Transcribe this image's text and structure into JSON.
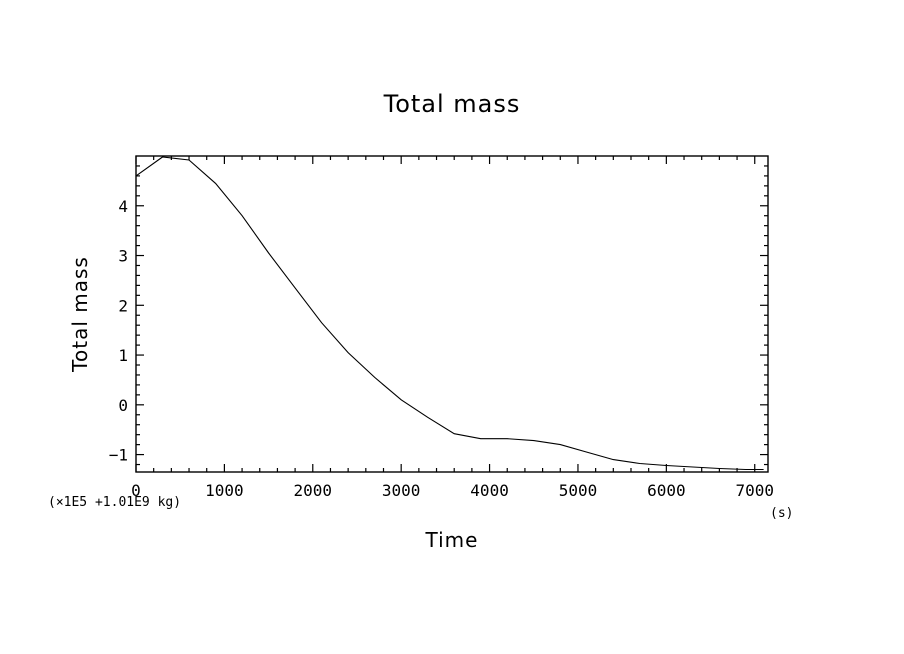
{
  "chart_data": {
    "type": "line",
    "title": "Total mass",
    "xlabel": "Time",
    "ylabel": "Total mass",
    "x_unit": "(s)",
    "y_scale_note": "(×1E5 +1.01E9 kg)",
    "xlim": [
      0,
      7150
    ],
    "ylim": [
      -1.35,
      5.0
    ],
    "x_ticks": [
      0,
      1000,
      2000,
      3000,
      4000,
      5000,
      6000,
      7000
    ],
    "x_tick_labels": [
      "0",
      "1000",
      "2000",
      "3000",
      "4000",
      "5000",
      "6000",
      "7000"
    ],
    "y_ticks": [
      -1,
      0,
      1,
      2,
      3,
      4
    ],
    "y_tick_labels": [
      "−1",
      "0",
      "1",
      "2",
      "3",
      "4"
    ],
    "grid": false,
    "series": [
      {
        "x": [
          0,
          300,
          600,
          900,
          1200,
          1500,
          1800,
          2100,
          2400,
          2700,
          3000,
          3300,
          3600,
          3900,
          4200,
          4500,
          4800,
          5100,
          5400,
          5700,
          6000,
          6300,
          6600,
          6900,
          7100
        ],
        "y": [
          4.6,
          4.98,
          4.92,
          4.45,
          3.8,
          3.05,
          2.35,
          1.65,
          1.05,
          0.55,
          0.1,
          -0.25,
          -0.58,
          -0.68,
          -0.68,
          -0.72,
          -0.8,
          -0.95,
          -1.1,
          -1.18,
          -1.22,
          -1.25,
          -1.28,
          -1.3,
          -1.3
        ]
      }
    ]
  }
}
